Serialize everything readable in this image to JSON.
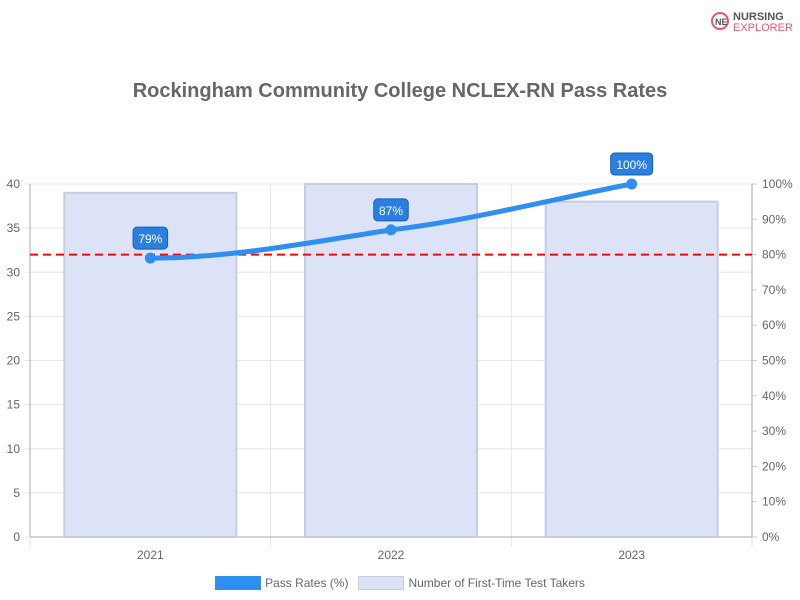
{
  "logo": {
    "line1": "NURSING",
    "line2": "EXPLORER"
  },
  "chart_data": {
    "type": "bar+line",
    "title": "Rockingham Community College NCLEX-RN Pass Rates",
    "categories": [
      "2021",
      "2022",
      "2023"
    ],
    "series": [
      {
        "name": "Pass Rates (%)",
        "type": "line",
        "axis": "right",
        "values": [
          79,
          87,
          100
        ],
        "labels": [
          "79%",
          "87%",
          "100%"
        ],
        "color": "#2f8ff0"
      },
      {
        "name": "Number of First-Time Test Takers",
        "type": "bar",
        "axis": "left",
        "values": [
          39,
          40,
          38
        ],
        "color": "#dde3f7",
        "border": "#c8cce0"
      }
    ],
    "reference_line": {
      "value": 80,
      "axis": "right",
      "color": "#ff0000",
      "style": "dashed"
    },
    "y_left": {
      "range": [
        0,
        40
      ],
      "ticks": [
        "0",
        "5",
        "10",
        "15",
        "20",
        "25",
        "30",
        "35",
        "40"
      ]
    },
    "y_right": {
      "range": [
        0,
        100
      ],
      "ticks": [
        "0%",
        "10%",
        "20%",
        "30%",
        "40%",
        "50%",
        "60%",
        "70%",
        "80%",
        "90%",
        "100%"
      ]
    },
    "grid": true,
    "legend": "bottom"
  }
}
